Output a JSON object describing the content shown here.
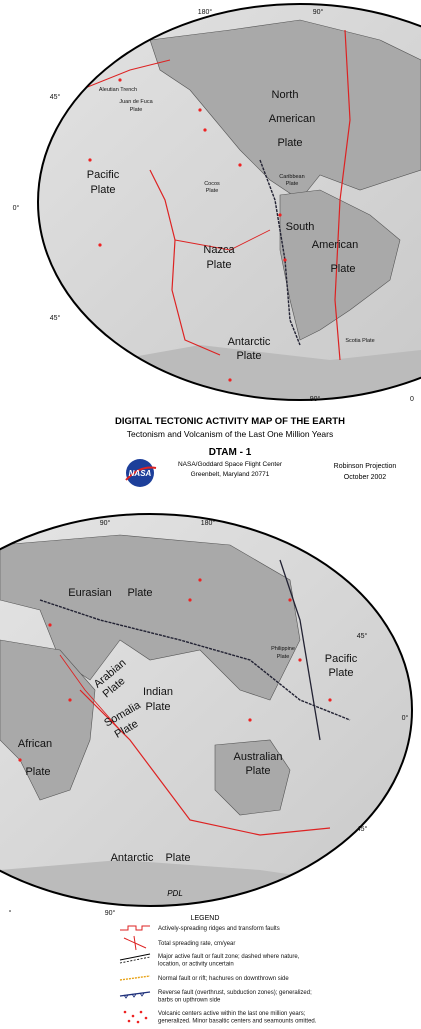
{
  "top_map": {
    "graticule": [
      "180°",
      "90°",
      "45°",
      "0°",
      "45°",
      "90°",
      "0"
    ],
    "plates": [
      "North",
      "American",
      "Plate",
      "Pacific",
      "Plate",
      "Nazca",
      "Plate",
      "South",
      "American",
      "Plate",
      "Antarctic",
      "Plate"
    ],
    "small_labels": [
      "Aleutian Trench",
      "Juan de Fuca",
      "Plate",
      "Cocos",
      "Plate",
      "Caribbean",
      "Plate",
      "Scotia Plate"
    ]
  },
  "title_block": {
    "title": "DIGITAL TECTONIC ACTIVITY MAP OF THE EARTH",
    "subtitle": "Tectonism and Volcanism of the Last One Million Years",
    "code": "DTAM - 1",
    "logo_text": "NASA",
    "center": "NASA/Goddard Space Flight Center",
    "address": "Greenbelt, Maryland 20771",
    "projection": "Robinson Projection",
    "date": "October 2002"
  },
  "bottom_map": {
    "graticule": [
      "90°",
      "180°",
      "45°",
      "0°",
      "45°",
      "90°",
      "°"
    ],
    "plates": [
      "Eurasian",
      "Plate",
      "Arabian",
      "Plate",
      "Indian",
      "Plate",
      "Somalia",
      "Plate",
      "African",
      "Plate",
      "Australian",
      "Plate",
      "Pacific",
      "Plate",
      "Philippine",
      "Plate",
      "Antarctic",
      "Plate"
    ],
    "small_labels": [
      "PDL"
    ]
  },
  "legend": {
    "title": "LEGEND",
    "items": [
      [
        "Actively-spreading ridges and transform faults"
      ],
      [
        "Total spreading rate, cm/year"
      ],
      [
        "Major active fault or fault zone; dashed where nature,",
        "location, or activity uncertain"
      ],
      [
        "Normal fault or rift; hachures on downthrown side"
      ],
      [
        "Reverse fault (overthrust, subduction zones); generalized;",
        "barbs on upthrown side"
      ],
      [
        "Volcanic centers active within the last one million years;",
        "generalized.  Minor basaltic centers and seamounts omitted."
      ]
    ]
  }
}
